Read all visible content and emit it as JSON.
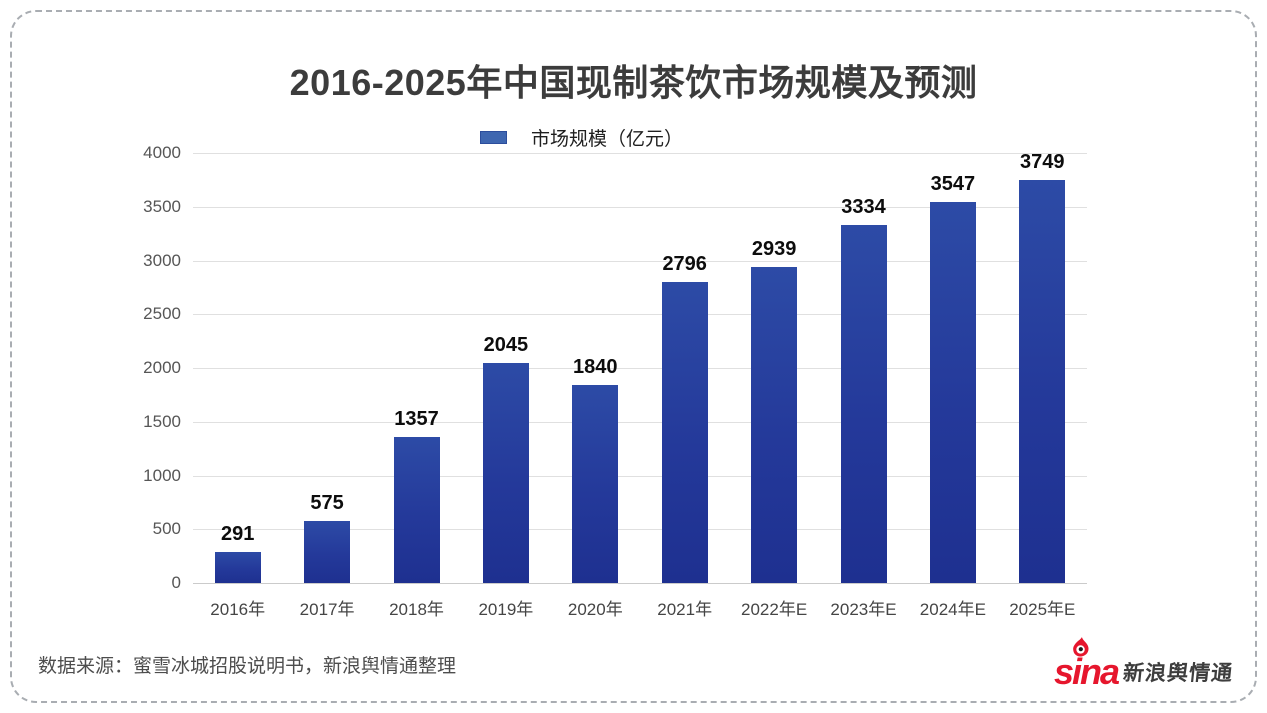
{
  "chart_data": {
    "type": "bar",
    "title": "2016-2025年中国现制茶饮市场规模及预测",
    "legend_label": "市场规模（亿元）",
    "legend_position": "top-center",
    "categories": [
      "2016年",
      "2017年",
      "2018年",
      "2019年",
      "2020年",
      "2021年",
      "2022年E",
      "2023年E",
      "2024年E",
      "2025年E"
    ],
    "values": [
      291,
      575,
      1357,
      2045,
      1840,
      2796,
      2939,
      3334,
      3547,
      3749
    ],
    "xlabel": "",
    "ylabel": "",
    "ylim": [
      0,
      4000
    ],
    "yticks": [
      0,
      500,
      1000,
      1500,
      2000,
      2500,
      3000,
      3500,
      4000
    ],
    "grid": true,
    "bar_color_top": "#2d4ba6",
    "bar_color_bottom": "#1e3090",
    "legend_swatch_color": "#3e66b0"
  },
  "footer": {
    "source": "数据来源：蜜雪冰城招股说明书，新浪舆情通整理",
    "logo_latin": "sina",
    "logo_cn": "新浪舆情通",
    "logo_red": "#e6162d"
  }
}
